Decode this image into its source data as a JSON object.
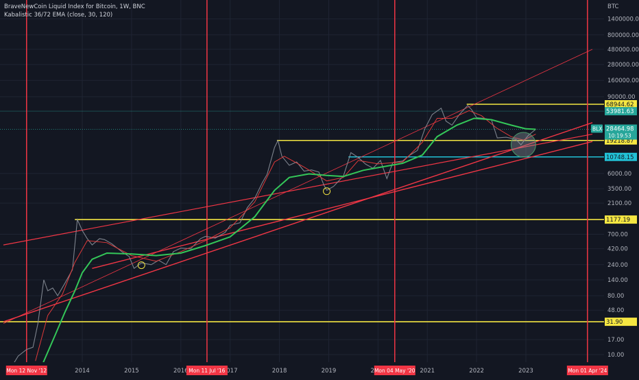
{
  "header": {
    "title": "BraveNewCoin Liquid Index for Bitcoin, 1W, BNC",
    "indicator": "Kabalistic 36/72 EMA (close, 30, 120)"
  },
  "chart_data": {
    "type": "line",
    "log_scale": true,
    "currency_label": "BTC",
    "y_ticks": [
      {
        "v": 1400000,
        "label": "1400000.00"
      },
      {
        "v": 800000,
        "label": "800000.00"
      },
      {
        "v": 480000,
        "label": "480000.00"
      },
      {
        "v": 280000,
        "label": "280000.00"
      },
      {
        "v": 160000,
        "label": "160000.00"
      },
      {
        "v": 90000,
        "label": "90000.00"
      },
      {
        "v": 6000,
        "label": "6000.00"
      },
      {
        "v": 3500,
        "label": "3500.00"
      },
      {
        "v": 2100,
        "label": "2100.00"
      },
      {
        "v": 700,
        "label": "700.00"
      },
      {
        "v": 420,
        "label": "420.00"
      },
      {
        "v": 240,
        "label": "240.00"
      },
      {
        "v": 140,
        "label": "140.00"
      },
      {
        "v": 80,
        "label": "80.00"
      },
      {
        "v": 48,
        "label": "48.00"
      },
      {
        "v": 17,
        "label": "17.00"
      },
      {
        "v": 10,
        "label": "10.00"
      }
    ],
    "x_ticks": [
      "2014",
      "2015",
      "2016",
      "2017",
      "2018",
      "2019",
      "2020",
      "2021",
      "2022",
      "2023"
    ],
    "x_tick_dates": [
      2014.0,
      2015.0,
      2016.0,
      2017.0,
      2018.0,
      2019.0,
      2020.0,
      2021.0,
      2022.0,
      2023.0
    ],
    "horizontal_levels": [
      {
        "value": 68944.62,
        "label": "68944.62",
        "color": "#f5e642"
      },
      {
        "value": 53981.63,
        "label": "53981.63",
        "color": "#26a69a"
      },
      {
        "value": 19218.87,
        "label": "19218.87",
        "color": "#f5e642"
      },
      {
        "value": 10748.15,
        "label": "10748.15",
        "color": "#22c1d6"
      },
      {
        "value": 1177.19,
        "label": "1177.19",
        "color": "#f5e642"
      },
      {
        "value": 31.9,
        "label": "31.90",
        "color": "#f5e642"
      }
    ],
    "price_label": {
      "symbol": "BLX",
      "value": "28464.98",
      "time": "10:19:53"
    },
    "vertical_markers": [
      {
        "date": 2012.87,
        "label": "Mon 12 Nov '12"
      },
      {
        "date": 2016.53,
        "label": "Mon 11 Jul '16"
      },
      {
        "date": 2020.34,
        "label": "Mon 04 May '20"
      },
      {
        "date": 2024.25,
        "label": "Mon 01 Apr '24"
      }
    ],
    "price_series": [
      [
        2012.55,
        6.2
      ],
      [
        2012.7,
        9.5
      ],
      [
        2012.87,
        12
      ],
      [
        2013.0,
        13
      ],
      [
        2013.1,
        30
      ],
      [
        2013.22,
        140
      ],
      [
        2013.3,
        95
      ],
      [
        2013.4,
        105
      ],
      [
        2013.5,
        80
      ],
      [
        2013.65,
        125
      ],
      [
        2013.8,
        200
      ],
      [
        2013.9,
        1177
      ],
      [
        2014.0,
        800
      ],
      [
        2014.1,
        600
      ],
      [
        2014.2,
        480
      ],
      [
        2014.35,
        600
      ],
      [
        2014.45,
        580
      ],
      [
        2014.6,
        500
      ],
      [
        2014.8,
        380
      ],
      [
        2014.95,
        320
      ],
      [
        2015.05,
        210
      ],
      [
        2015.2,
        255
      ],
      [
        2015.4,
        240
      ],
      [
        2015.55,
        280
      ],
      [
        2015.7,
        240
      ],
      [
        2015.85,
        380
      ],
      [
        2016.0,
        430
      ],
      [
        2016.2,
        420
      ],
      [
        2016.4,
        600
      ],
      [
        2016.5,
        650
      ],
      [
        2016.7,
        610
      ],
      [
        2016.9,
        750
      ],
      [
        2017.0,
        960
      ],
      [
        2017.2,
        1050
      ],
      [
        2017.35,
        1800
      ],
      [
        2017.5,
        2500
      ],
      [
        2017.65,
        4300
      ],
      [
        2017.75,
        5800
      ],
      [
        2017.9,
        15000
      ],
      [
        2017.97,
        19218
      ],
      [
        2018.05,
        11000
      ],
      [
        2018.2,
        8000
      ],
      [
        2018.35,
        9000
      ],
      [
        2018.5,
        6500
      ],
      [
        2018.65,
        6800
      ],
      [
        2018.8,
        6300
      ],
      [
        2018.9,
        4000
      ],
      [
        2018.96,
        3300
      ],
      [
        2019.1,
        3800
      ],
      [
        2019.3,
        5500
      ],
      [
        2019.45,
        12500
      ],
      [
        2019.6,
        10500
      ],
      [
        2019.75,
        8300
      ],
      [
        2019.9,
        7200
      ],
      [
        2020.05,
        9500
      ],
      [
        2020.18,
        5000
      ],
      [
        2020.3,
        8800
      ],
      [
        2020.5,
        9300
      ],
      [
        2020.65,
        11500
      ],
      [
        2020.8,
        13500
      ],
      [
        2020.95,
        29000
      ],
      [
        2021.1,
        48000
      ],
      [
        2021.28,
        60000
      ],
      [
        2021.38,
        38000
      ],
      [
        2021.5,
        33000
      ],
      [
        2021.65,
        48000
      ],
      [
        2021.82,
        66000
      ],
      [
        2021.9,
        57000
      ],
      [
        2022.0,
        43000
      ],
      [
        2022.15,
        42000
      ],
      [
        2022.3,
        40000
      ],
      [
        2022.42,
        21000
      ],
      [
        2022.6,
        21500
      ],
      [
        2022.8,
        20000
      ],
      [
        2022.9,
        16500
      ],
      [
        2023.05,
        23000
      ],
      [
        2023.2,
        28464
      ]
    ],
    "ema_fast": [
      [
        2013.05,
        8
      ],
      [
        2013.3,
        40
      ],
      [
        2013.6,
        85
      ],
      [
        2013.85,
        260
      ],
      [
        2014.1,
        560
      ],
      [
        2014.5,
        520
      ],
      [
        2015.0,
        330
      ],
      [
        2015.5,
        270
      ],
      [
        2016.0,
        380
      ],
      [
        2016.5,
        560
      ],
      [
        2017.0,
        880
      ],
      [
        2017.5,
        2200
      ],
      [
        2017.9,
        9000
      ],
      [
        2018.1,
        11000
      ],
      [
        2018.5,
        7500
      ],
      [
        2018.96,
        4600
      ],
      [
        2019.3,
        5200
      ],
      [
        2019.6,
        9500
      ],
      [
        2020.0,
        8400
      ],
      [
        2020.5,
        9000
      ],
      [
        2020.9,
        18000
      ],
      [
        2021.2,
        42000
      ],
      [
        2021.5,
        42000
      ],
      [
        2021.85,
        55000
      ],
      [
        2022.1,
        46000
      ],
      [
        2022.4,
        30000
      ],
      [
        2022.7,
        22000
      ],
      [
        2022.95,
        19500
      ],
      [
        2023.2,
        24000
      ]
    ],
    "ema_slow": [
      [
        2013.15,
        6
      ],
      [
        2013.45,
        20
      ],
      [
        2013.65,
        45
      ],
      [
        2013.85,
        95
      ],
      [
        2014.0,
        180
      ],
      [
        2014.2,
        290
      ],
      [
        2014.5,
        360
      ],
      [
        2015.0,
        350
      ],
      [
        2015.5,
        330
      ],
      [
        2016.0,
        360
      ],
      [
        2016.5,
        470
      ],
      [
        2017.0,
        640
      ],
      [
        2017.5,
        1300
      ],
      [
        2017.9,
        3300
      ],
      [
        2018.2,
        5200
      ],
      [
        2018.6,
        5900
      ],
      [
        2018.96,
        5600
      ],
      [
        2019.3,
        5400
      ],
      [
        2019.7,
        6700
      ],
      [
        2020.1,
        7600
      ],
      [
        2020.5,
        8600
      ],
      [
        2020.9,
        11500
      ],
      [
        2021.2,
        22000
      ],
      [
        2021.6,
        33000
      ],
      [
        2021.95,
        42000
      ],
      [
        2022.3,
        40000
      ],
      [
        2022.7,
        33000
      ],
      [
        2023.0,
        29000
      ],
      [
        2023.2,
        28500
      ]
    ],
    "trend_lines": [
      {
        "from": [
          2012.4,
          30
        ],
        "to": [
          2024.35,
          480000
        ],
        "color": "#f23645",
        "width": 0.8
      },
      {
        "from": [
          2014.2,
          210
        ],
        "to": [
          2024.35,
          18500
        ],
        "color": "#f23645",
        "width": 1.4
      },
      {
        "from": [
          2012.4,
          31.9
        ],
        "to": [
          2024.35,
          36000
        ],
        "color": "#f23645",
        "width": 1.4
      },
      {
        "from": [
          2012.4,
          480
        ],
        "to": [
          2024.35,
          24000
        ],
        "color": "#f23645",
        "width": 1.2
      }
    ],
    "circles": [
      {
        "date": 2015.2,
        "value": 235,
        "r": 5
      },
      {
        "date": 2018.96,
        "value": 3200,
        "r": 5
      },
      {
        "date": 2022.95,
        "value": 16500,
        "r": 18
      }
    ]
  }
}
